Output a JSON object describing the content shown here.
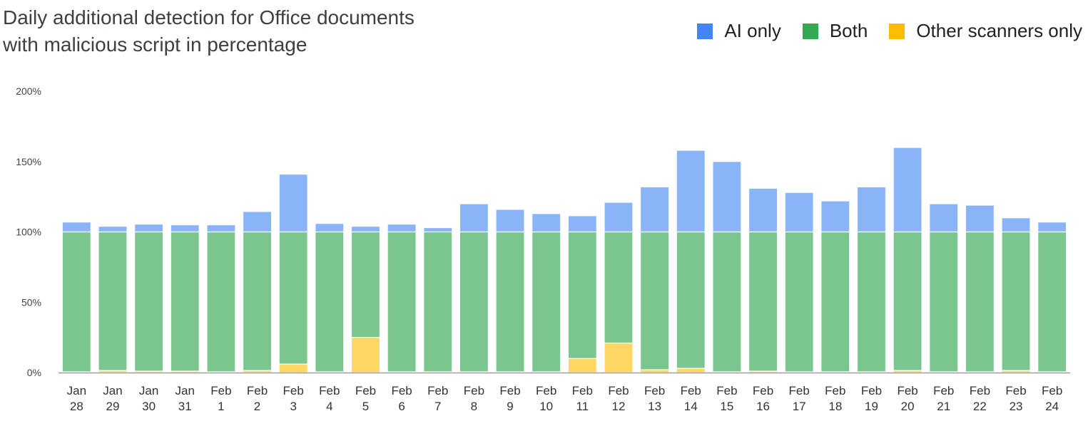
{
  "chart_data": {
    "type": "bar",
    "stacked": true,
    "title_lines": [
      "Daily additional detection for Office documents",
      "with malicious script in percentage"
    ],
    "xlabel": "",
    "ylabel": "",
    "ylim": [
      0,
      200
    ],
    "yticks": [
      {
        "value": 0,
        "label": "0%"
      },
      {
        "value": 50,
        "label": "50%"
      },
      {
        "value": 100,
        "label": "100%"
      },
      {
        "value": 150,
        "label": "150%"
      },
      {
        "value": 200,
        "label": "200%"
      }
    ],
    "grid": false,
    "legend_position": "top-right",
    "categories": [
      [
        "Jan",
        "28"
      ],
      [
        "Jan",
        "29"
      ],
      [
        "Jan",
        "30"
      ],
      [
        "Jan",
        "31"
      ],
      [
        "Feb",
        "1"
      ],
      [
        "Feb",
        "2"
      ],
      [
        "Feb",
        "3"
      ],
      [
        "Feb",
        "4"
      ],
      [
        "Feb",
        "5"
      ],
      [
        "Feb",
        "6"
      ],
      [
        "Feb",
        "7"
      ],
      [
        "Feb",
        "8"
      ],
      [
        "Feb",
        "9"
      ],
      [
        "Feb",
        "10"
      ],
      [
        "Feb",
        "11"
      ],
      [
        "Feb",
        "12"
      ],
      [
        "Feb",
        "13"
      ],
      [
        "Feb",
        "14"
      ],
      [
        "Feb",
        "15"
      ],
      [
        "Feb",
        "16"
      ],
      [
        "Feb",
        "17"
      ],
      [
        "Feb",
        "18"
      ],
      [
        "Feb",
        "19"
      ],
      [
        "Feb",
        "20"
      ],
      [
        "Feb",
        "21"
      ],
      [
        "Feb",
        "22"
      ],
      [
        "Feb",
        "23"
      ],
      [
        "Feb",
        "24"
      ]
    ],
    "series": [
      {
        "name": "Other scanners only",
        "legend_color": "#fbbc04",
        "bar_color": "#fdd663",
        "values": [
          0.5,
          1.5,
          1,
          1,
          0.5,
          1.5,
          6,
          0.5,
          25,
          0.5,
          0.5,
          0.5,
          0.5,
          0.5,
          10,
          21,
          2,
          3,
          0.5,
          1,
          0.5,
          0.5,
          0.5,
          1.5,
          0.5,
          0.5,
          1.5,
          0.5
        ]
      },
      {
        "name": "Both",
        "legend_color": "#34a853",
        "bar_color": "#7bc68f",
        "values": [
          99.5,
          98.5,
          99,
          99,
          99.5,
          98.5,
          94,
          99.5,
          75,
          99.5,
          99.5,
          99.5,
          99.5,
          99.5,
          90,
          79,
          98,
          97,
          99.5,
          99,
          99.5,
          99.5,
          99.5,
          98.5,
          99.5,
          99.5,
          98.5,
          99.5
        ]
      },
      {
        "name": "AI only",
        "legend_color": "#4285f4",
        "bar_color": "#8ab4f8",
        "values": [
          7,
          4,
          5.5,
          5,
          5,
          14.5,
          41,
          6,
          4,
          5.5,
          3,
          20,
          16,
          13,
          11.5,
          21,
          32,
          58,
          50,
          31,
          28,
          22,
          32,
          60,
          20,
          19,
          10,
          7
        ]
      }
    ],
    "legend_order": [
      "AI only",
      "Both",
      "Other scanners only"
    ]
  }
}
